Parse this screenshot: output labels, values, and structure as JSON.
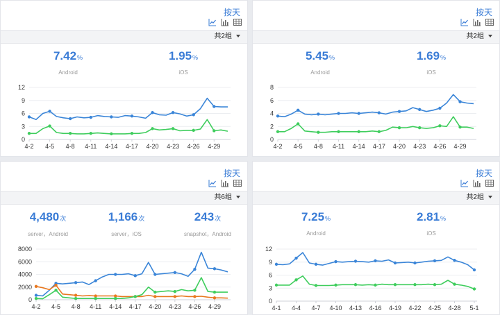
{
  "panels": [
    {
      "by_day": "按天",
      "group_label": "共2组",
      "metrics": [
        {
          "value": "7.42",
          "unit": "%",
          "label": "Android"
        },
        {
          "value": "1.95",
          "unit": "%",
          "label": "iOS"
        }
      ],
      "chart_data": {
        "type": "line",
        "x": [
          "4-2",
          "4-3",
          "4-4",
          "4-5",
          "4-6",
          "4-7",
          "4-8",
          "4-9",
          "4-10",
          "4-11",
          "4-12",
          "4-13",
          "4-14",
          "4-15",
          "4-16",
          "4-17",
          "4-18",
          "4-19",
          "4-20",
          "4-21",
          "4-22",
          "4-23",
          "4-24",
          "4-25",
          "4-26",
          "4-27",
          "4-28",
          "4-29",
          "4-30",
          "5-1"
        ],
        "xticks": [
          "4-2",
          "4-5",
          "4-8",
          "4-11",
          "4-14",
          "4-17",
          "4-20",
          "4-23",
          "4-26",
          "4-29"
        ],
        "ylim": [
          0,
          12
        ],
        "yticks": [
          0,
          3,
          6,
          9,
          12
        ],
        "series": [
          {
            "color": "#3a85d8",
            "values": [
              5.2,
              4.6,
              6.0,
              6.5,
              5.3,
              5.0,
              4.8,
              5.2,
              5.0,
              5.1,
              5.5,
              5.3,
              5.2,
              5.1,
              5.5,
              5.4,
              5.2,
              4.9,
              6.2,
              5.7,
              5.6,
              6.2,
              5.9,
              5.4,
              5.7,
              7.1,
              9.5,
              7.6,
              7.5,
              7.5
            ]
          },
          {
            "color": "#3fcd5d",
            "values": [
              1.4,
              1.4,
              2.5,
              3.1,
              1.6,
              1.4,
              1.4,
              1.3,
              1.3,
              1.4,
              1.5,
              1.4,
              1.3,
              1.3,
              1.3,
              1.4,
              1.4,
              1.6,
              2.5,
              2.2,
              2.3,
              2.5,
              2.0,
              2.1,
              2.1,
              2.4,
              4.6,
              2.0,
              2.2,
              1.9
            ]
          }
        ]
      }
    },
    {
      "by_day": "按天",
      "group_label": "共2组",
      "metrics": [
        {
          "value": "5.45",
          "unit": "%",
          "label": "Android"
        },
        {
          "value": "1.69",
          "unit": "%",
          "label": "iOS"
        }
      ],
      "chart_data": {
        "type": "line",
        "x": [
          "4-2",
          "4-3",
          "4-4",
          "4-5",
          "4-6",
          "4-7",
          "4-8",
          "4-9",
          "4-10",
          "4-11",
          "4-12",
          "4-13",
          "4-14",
          "4-15",
          "4-16",
          "4-17",
          "4-18",
          "4-19",
          "4-20",
          "4-21",
          "4-22",
          "4-23",
          "4-24",
          "4-25",
          "4-26",
          "4-27",
          "4-28",
          "4-29",
          "4-30",
          "5-1"
        ],
        "xticks": [
          "4-2",
          "4-5",
          "4-8",
          "4-11",
          "4-14",
          "4-17",
          "4-20",
          "4-23",
          "4-26",
          "4-29"
        ],
        "ylim": [
          0,
          8
        ],
        "yticks": [
          0,
          2,
          4,
          6,
          8
        ],
        "series": [
          {
            "color": "#3a85d8",
            "values": [
              3.6,
              3.5,
              3.9,
              4.5,
              3.9,
              3.8,
              3.9,
              3.8,
              3.9,
              4.0,
              4.0,
              4.1,
              4.0,
              4.1,
              4.2,
              4.1,
              3.9,
              4.2,
              4.3,
              4.4,
              4.9,
              4.6,
              4.3,
              4.5,
              4.8,
              5.6,
              6.9,
              5.8,
              5.6,
              5.5
            ]
          },
          {
            "color": "#3fcd5d",
            "values": [
              1.2,
              1.2,
              1.7,
              2.4,
              1.3,
              1.2,
              1.1,
              1.1,
              1.2,
              1.2,
              1.2,
              1.2,
              1.2,
              1.2,
              1.3,
              1.2,
              1.4,
              1.9,
              1.8,
              1.8,
              2.0,
              1.8,
              1.7,
              1.8,
              2.1,
              2.0,
              3.5,
              1.9,
              1.9,
              1.7
            ]
          }
        ]
      }
    },
    {
      "by_day": "按天",
      "group_label": "共6组",
      "metrics": [
        {
          "value": "4,480",
          "unit": "次",
          "label": "server，Android"
        },
        {
          "value": "1,166",
          "unit": "次",
          "label": "server，iOS"
        },
        {
          "value": "243",
          "unit": "次",
          "label": "snapshot，Android"
        }
      ],
      "chart_data": {
        "type": "line",
        "x": [
          "4-2",
          "4-3",
          "4-4",
          "4-5",
          "4-6",
          "4-7",
          "4-8",
          "4-9",
          "4-10",
          "4-11",
          "4-12",
          "4-13",
          "4-14",
          "4-15",
          "4-16",
          "4-17",
          "4-18",
          "4-19",
          "4-20",
          "4-21",
          "4-22",
          "4-23",
          "4-24",
          "4-25",
          "4-26",
          "4-27",
          "4-28",
          "4-29",
          "4-30",
          "5-1"
        ],
        "xticks": [
          "4-2",
          "4-5",
          "4-8",
          "4-11",
          "4-14",
          "4-17",
          "4-20",
          "4-23",
          "4-26",
          "4-29"
        ],
        "ylim": [
          0,
          8000
        ],
        "yticks": [
          0,
          2000,
          4000,
          6000,
          8000
        ],
        "series": [
          {
            "color": "#3a85d8",
            "values": [
              700,
              600,
              1500,
              2600,
              2500,
              2600,
              2700,
              2800,
              2400,
              3000,
              3600,
              4000,
              4000,
              4000,
              4100,
              3800,
              4100,
              5900,
              4000,
              4100,
              4200,
              4300,
              4100,
              3700,
              4800,
              7500,
              5000,
              4900,
              4700,
              4400
            ]
          },
          {
            "color": "#e8781f",
            "values": [
              2100,
              1900,
              1600,
              2300,
              900,
              800,
              700,
              600,
              650,
              600,
              600,
              600,
              600,
              500,
              500,
              500,
              500,
              700,
              500,
              500,
              500,
              500,
              600,
              500,
              500,
              550,
              400,
              300,
              300,
              250
            ]
          },
          {
            "color": "#3fcd5d",
            "values": [
              200,
              150,
              800,
              1500,
              400,
              300,
              200,
              200,
              200,
              200,
              200,
              200,
              200,
              200,
              300,
              500,
              800,
              2000,
              1200,
              1300,
              1400,
              1300,
              1600,
              1400,
              1500,
              3500,
              1300,
              1200,
              1200,
              1200
            ]
          }
        ]
      }
    },
    {
      "by_day": "按天",
      "group_label": "共2组",
      "metrics": [
        {
          "value": "7.25",
          "unit": "%",
          "label": "Android"
        },
        {
          "value": "2.81",
          "unit": "%",
          "label": "iOS"
        }
      ],
      "chart_data": {
        "type": "line",
        "x": [
          "4-1",
          "4-2",
          "4-3",
          "4-4",
          "4-5",
          "4-6",
          "4-7",
          "4-8",
          "4-9",
          "4-10",
          "4-11",
          "4-12",
          "4-13",
          "4-14",
          "4-15",
          "4-16",
          "4-17",
          "4-18",
          "4-19",
          "4-20",
          "4-21",
          "4-22",
          "4-23",
          "4-24",
          "4-25",
          "4-26",
          "4-27",
          "4-28",
          "4-29",
          "4-30",
          "5-1"
        ],
        "xticks": [
          "4-1",
          "4-4",
          "4-7",
          "4-10",
          "4-13",
          "4-16",
          "4-19",
          "4-22",
          "4-25",
          "4-28",
          "5-1"
        ],
        "ylim": [
          0,
          12
        ],
        "yticks": [
          0,
          3,
          6,
          9,
          12
        ],
        "series": [
          {
            "color": "#3a85d8",
            "values": [
              8.5,
              8.4,
              8.6,
              9.9,
              11.2,
              8.8,
              8.5,
              8.3,
              8.7,
              9.1,
              9.0,
              9.1,
              9.2,
              9.1,
              9.0,
              9.3,
              9.2,
              9.5,
              8.8,
              8.9,
              9.0,
              8.8,
              9.0,
              9.2,
              9.3,
              9.4,
              10.2,
              9.4,
              9.0,
              8.4,
              7.2
            ]
          },
          {
            "color": "#3fcd5d",
            "values": [
              3.7,
              3.7,
              3.7,
              4.9,
              5.8,
              3.9,
              3.6,
              3.6,
              3.6,
              3.7,
              3.8,
              3.8,
              3.8,
              3.7,
              3.8,
              3.7,
              3.9,
              3.8,
              3.8,
              3.8,
              3.8,
              3.8,
              3.8,
              3.9,
              3.8,
              3.9,
              4.8,
              3.9,
              3.7,
              3.4,
              2.8
            ]
          }
        ]
      }
    }
  ]
}
